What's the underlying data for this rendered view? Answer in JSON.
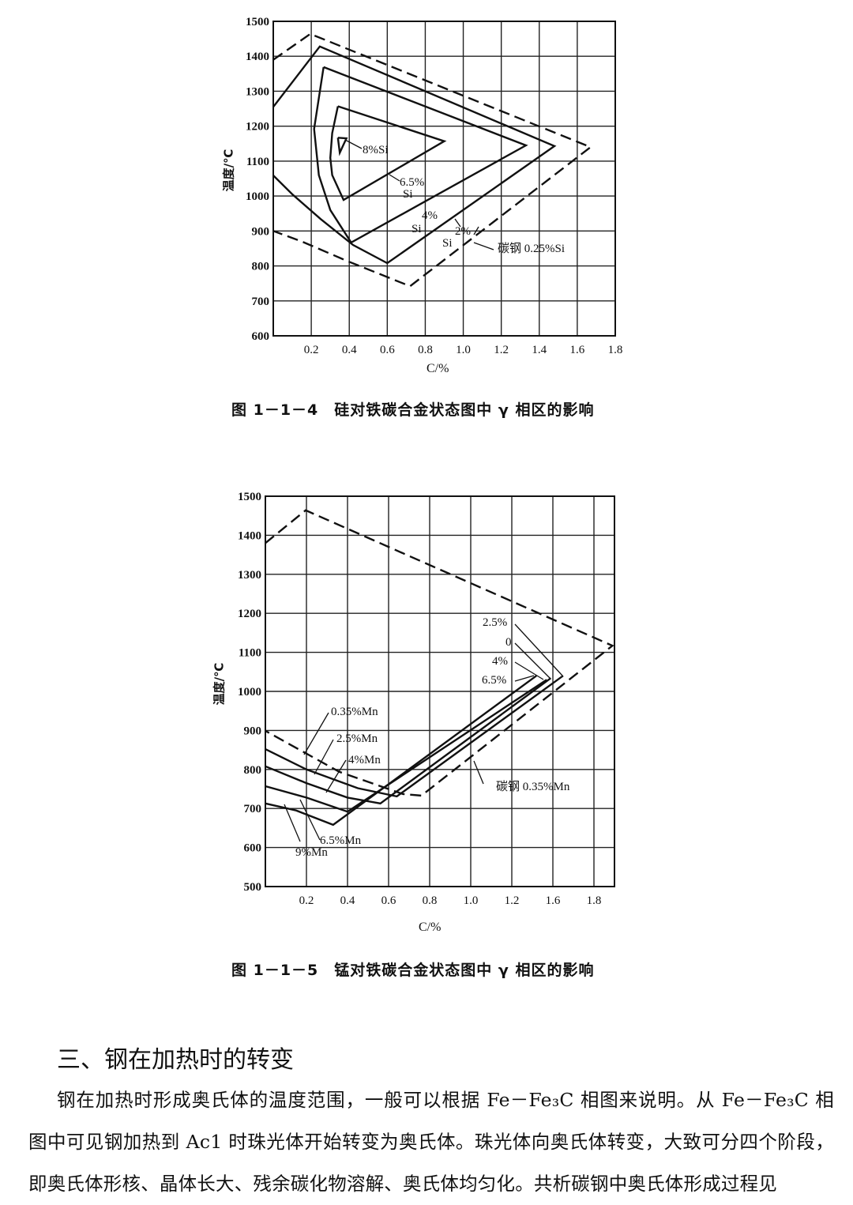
{
  "figures": [
    {
      "caption": "图 1－1－4　硅对铁碳合金状态图中 γ 相区的影响",
      "ylabel": "温度/℃",
      "xlabel": "C/%",
      "labels": {
        "si8": "8%Si",
        "si65a": "6.5%",
        "si65b": "Si",
        "si4a": "4%",
        "si4b": "Si",
        "si2a": "2%",
        "si2b": "Si",
        "carbon": "碳钢 0.25%Si"
      }
    },
    {
      "caption": "图 1－1－5　锰对铁碳合金状态图中 γ 相区的影响",
      "ylabel": "温度/℃",
      "xlabel": "C/%",
      "labels": {
        "r25": "2.5%",
        "r0": "0",
        "r4": "4%",
        "r65": "6.5%",
        "mn035": "0.35%Mn",
        "mn25": "2.5%Mn",
        "mn4": "4%Mn",
        "mn65": "6.5%Mn",
        "mn9": "9%Mn",
        "carbon": "碳钢 0.35%Mn"
      }
    }
  ],
  "chart_data": [
    {
      "type": "line",
      "title": "",
      "xlabel": "C/%",
      "ylabel": "温度/℃",
      "xlim": [
        0,
        1.8
      ],
      "ylim": [
        600,
        1500
      ],
      "x_ticks": [
        "0.2",
        "0.4",
        "0.6",
        "0.8",
        "1.0",
        "1.2",
        "1.4",
        "1.6",
        "1.8"
      ],
      "y_ticks": [
        "1500",
        "1400",
        "1300",
        "1200",
        "1100",
        "1000",
        "900",
        "800",
        "700",
        "600"
      ],
      "grid": true,
      "series": [
        {
          "name": "碳钢 0.25%Si",
          "style": "dashed",
          "points": [
            [
              0,
              1390
            ],
            [
              0.195,
              1464
            ],
            [
              1.67,
              1140
            ],
            [
              0.72,
              742
            ],
            [
              0.39,
              814
            ],
            [
              0.15,
              870
            ],
            [
              0,
              900
            ]
          ]
        },
        {
          "name": "2%Si",
          "style": "solid",
          "points": [
            [
              0,
              1255
            ],
            [
              0.245,
              1428
            ],
            [
              1.48,
              1143
            ],
            [
              0.6,
              808
            ],
            [
              0.42,
              860
            ],
            [
              0.25,
              934
            ],
            [
              0.1,
              1005
            ],
            [
              0,
              1059
            ]
          ]
        },
        {
          "name": "4%Si",
          "style": "solid",
          "points": [
            [
              0.265,
              1369
            ],
            [
              1.33,
              1145
            ],
            [
              0.41,
              867
            ],
            [
              0.3,
              960
            ],
            [
              0.24,
              1060
            ],
            [
              0.215,
              1192
            ],
            [
              0.265,
              1369
            ]
          ]
        },
        {
          "name": "6.5%Si",
          "style": "solid",
          "points": [
            [
              0.34,
              1257
            ],
            [
              0.9,
              1157
            ],
            [
              0.37,
              989
            ],
            [
              0.31,
              1060
            ],
            [
              0.3,
              1109
            ],
            [
              0.31,
              1180
            ],
            [
              0.34,
              1257
            ]
          ]
        },
        {
          "name": "8%Si",
          "style": "solid",
          "points": [
            [
              0.34,
              1167
            ],
            [
              0.385,
              1165
            ],
            [
              0.35,
              1124
            ],
            [
              0.34,
              1167
            ]
          ]
        }
      ]
    },
    {
      "type": "line",
      "title": "",
      "xlabel": "C/%",
      "ylabel": "温度/℃",
      "xlim": [
        0,
        1.7
      ],
      "ylim": [
        500,
        1500
      ],
      "x_ticks": [
        "0.2",
        "0.4",
        "0.6",
        "0.8",
        "1.0",
        "1.2",
        "1.6",
        "1.8"
      ],
      "y_ticks": [
        "1500",
        "1400",
        "1300",
        "1200",
        "1100",
        "1000",
        "900",
        "800",
        "700",
        "600",
        "500"
      ],
      "grid": true,
      "series": [
        {
          "name": "碳钢 0.35%Mn",
          "style": "dashed",
          "points": [
            [
              0,
              1380
            ],
            [
              0.196,
              1464
            ],
            [
              1.69,
              1117
            ],
            [
              0.76,
              733
            ],
            [
              0.67,
              737
            ],
            [
              0.36,
              794
            ],
            [
              0,
              899
            ]
          ]
        },
        {
          "name": "0.35%Mn",
          "style": "solid",
          "points": [
            [
              0,
              852
            ],
            [
              0.2,
              800
            ],
            [
              0.45,
              752
            ],
            [
              0.64,
              731
            ],
            [
              1.45,
              1040
            ]
          ]
        },
        {
          "name": "2.5%Mn",
          "style": "solid",
          "points": [
            [
              0,
              808
            ],
            [
              0.2,
              765
            ],
            [
              0.4,
              728
            ],
            [
              0.56,
              713
            ],
            [
              1.39,
              1034
            ]
          ]
        },
        {
          "name": "4%Mn",
          "style": "solid",
          "points": [
            [
              0,
              757
            ],
            [
              0.2,
              728
            ],
            [
              0.4,
              692
            ],
            [
              1.37,
              1030
            ]
          ]
        },
        {
          "name": "6.5%Mn",
          "style": "solid",
          "points": [
            [
              0,
              713
            ],
            [
              0.15,
              695
            ],
            [
              0.33,
              658
            ],
            [
              1.32,
              1040
            ]
          ]
        }
      ]
    }
  ],
  "section": {
    "heading": "三、钢在加热时的转变",
    "paragraph": "钢在加热时形成奥氏体的温度范围，一般可以根据 Fe－Fe₃C 相图来说明。从 Fe－Fe₃C 相图中可见钢加热到 Ac1 时珠光体开始转变为奥氏体。珠光体向奥氏体转变，大致可分四个阶段，即奥氏体形核、晶体长大、残余碳化物溶解、奥氏体均匀化。共析碳钢中奥氏体形成过程见"
  }
}
